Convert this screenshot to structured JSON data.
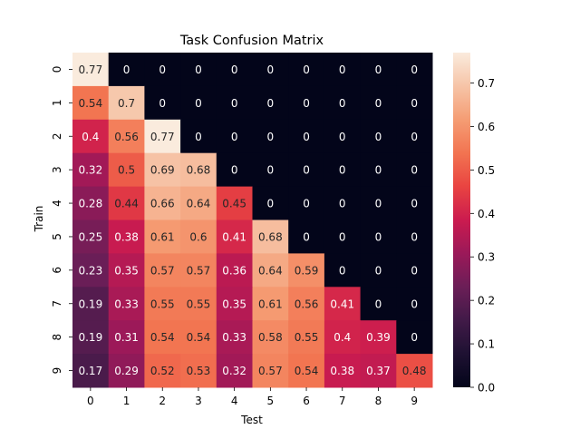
{
  "chart_data": {
    "type": "heatmap",
    "title": "Task Confusion Matrix",
    "xlabel": "Test",
    "ylabel": "Train",
    "x_categories": [
      "0",
      "1",
      "2",
      "3",
      "4",
      "5",
      "6",
      "7",
      "8",
      "9"
    ],
    "y_categories": [
      "0",
      "1",
      "2",
      "3",
      "4",
      "5",
      "6",
      "7",
      "8",
      "9"
    ],
    "values": [
      [
        0.77,
        0,
        0,
        0,
        0,
        0,
        0,
        0,
        0,
        0
      ],
      [
        0.54,
        0.7,
        0,
        0,
        0,
        0,
        0,
        0,
        0,
        0
      ],
      [
        0.4,
        0.56,
        0.77,
        0,
        0,
        0,
        0,
        0,
        0,
        0
      ],
      [
        0.32,
        0.5,
        0.69,
        0.68,
        0,
        0,
        0,
        0,
        0,
        0
      ],
      [
        0.28,
        0.44,
        0.66,
        0.64,
        0.45,
        0,
        0,
        0,
        0,
        0
      ],
      [
        0.25,
        0.38,
        0.61,
        0.6,
        0.41,
        0.68,
        0,
        0,
        0,
        0
      ],
      [
        0.23,
        0.35,
        0.57,
        0.57,
        0.36,
        0.64,
        0.59,
        0,
        0,
        0
      ],
      [
        0.19,
        0.33,
        0.55,
        0.55,
        0.35,
        0.61,
        0.56,
        0.41,
        0,
        0
      ],
      [
        0.19,
        0.31,
        0.54,
        0.54,
        0.33,
        0.58,
        0.55,
        0.4,
        0.39,
        0
      ],
      [
        0.17,
        0.29,
        0.52,
        0.53,
        0.32,
        0.57,
        0.54,
        0.38,
        0.37,
        0.48
      ]
    ],
    "colorbar": {
      "range": [
        0.0,
        0.77
      ],
      "ticks": [
        "0.0",
        "0.1",
        "0.2",
        "0.3",
        "0.4",
        "0.5",
        "0.6",
        "0.7"
      ],
      "colormap": "rocket"
    }
  }
}
